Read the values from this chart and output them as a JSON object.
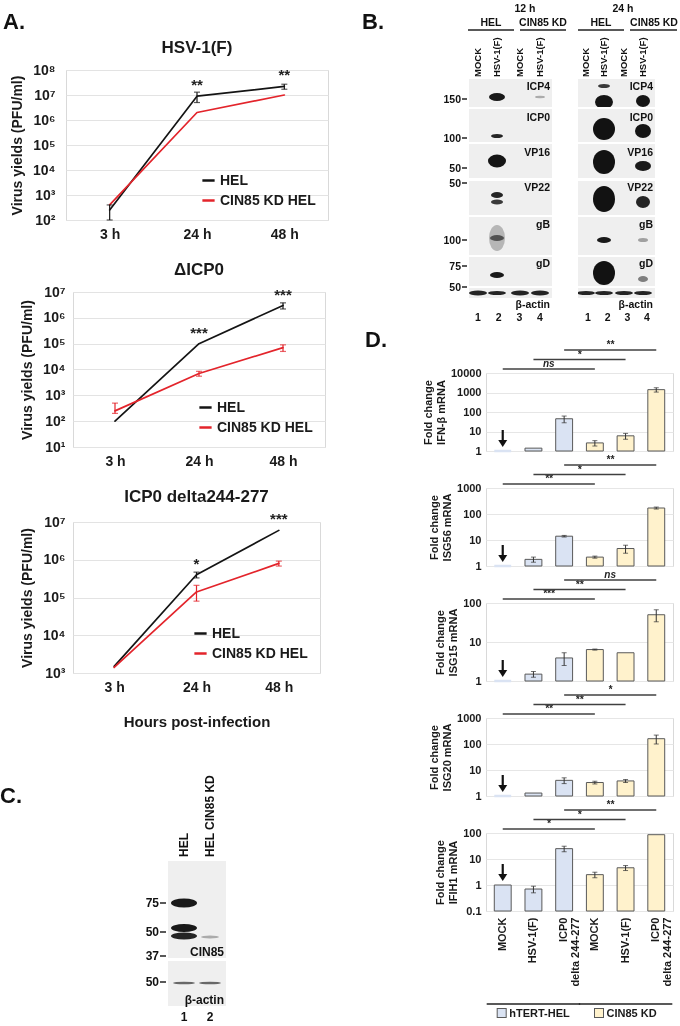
{
  "chart_data": [
    {
      "type": "line",
      "title": "HSV-1(F)",
      "ylabel": "Virus yields (PFU/ml)",
      "categories": [
        "3 h",
        "24 h",
        "48 h"
      ],
      "log": "y",
      "ylim": [
        100,
        100000000
      ],
      "yticks": [
        {
          "value": 100,
          "label": "10²"
        },
        {
          "value": 1000,
          "label": "10³"
        },
        {
          "value": 10000,
          "label": "10⁴"
        },
        {
          "value": 100000,
          "label": "10⁵"
        },
        {
          "value": 1000000,
          "label": "10⁶"
        },
        {
          "value": 10000000,
          "label": "10⁷"
        },
        {
          "value": 100000000,
          "label": "10⁸"
        }
      ],
      "grid": "y",
      "legend": "bottom right",
      "series": [
        {
          "name": "HEL",
          "color": "#141414",
          "values": [
            250,
            9000000,
            22000000
          ],
          "errors": [
            [
              100,
              400
            ],
            4000000,
            5000000
          ]
        },
        {
          "name": "CIN85 KD HEL",
          "color": "#e3242b",
          "values": [
            400,
            2000000,
            10000000
          ]
        }
      ],
      "annotations": [
        "A.",
        {
          "text": "**",
          "x": "24 h",
          "y": 9000000
        },
        {
          "text": "**",
          "x": "48 h",
          "y": 22000000
        }
      ]
    },
    {
      "type": "line",
      "title": "ΔICP0",
      "ylabel": "Virus yields (PFU/ml)",
      "categories": [
        "3 h",
        "24 h",
        "48 h"
      ],
      "log": "y",
      "ylim": [
        10,
        10000000
      ],
      "yticks": [
        {
          "value": 10,
          "label": "10¹"
        },
        {
          "value": 100,
          "label": "10²"
        },
        {
          "value": 1000,
          "label": "10³"
        },
        {
          "value": 10000,
          "label": "10⁴"
        },
        {
          "value": 100000,
          "label": "10⁵"
        },
        {
          "value": 1000000,
          "label": "10⁶"
        },
        {
          "value": 10000000,
          "label": "10⁷"
        }
      ],
      "grid": "y",
      "legend": "bottom right",
      "series": [
        {
          "name": "HEL",
          "color": "#141414",
          "values": [
            100,
            100000,
            3000000
          ],
          "errors": [
            null,
            null,
            800000
          ]
        },
        {
          "name": "CIN85 KD HEL",
          "color": "#e3242b",
          "values": [
            250,
            7000,
            70000
          ],
          "errors": [
            [
              200,
              500
            ],
            1500,
            20000
          ]
        }
      ],
      "annotations": [
        {
          "text": "***",
          "x": "24 h",
          "y": 100000
        },
        {
          "text": "***",
          "x": "48 h",
          "y": 3000000
        }
      ]
    },
    {
      "type": "line",
      "title": "ICP0 delta244-277",
      "xlabel": "Hours post-infection",
      "ylabel": "Virus yields (PFU/ml)",
      "categories": [
        "3 h",
        "24 h",
        "48 h"
      ],
      "log": "y",
      "ylim": [
        1000,
        10000000
      ],
      "yticks": [
        {
          "value": 1000,
          "label": "10³"
        },
        {
          "value": 10000,
          "label": "10⁴"
        },
        {
          "value": 100000,
          "label": "10⁵"
        },
        {
          "value": 1000000,
          "label": "10⁶"
        },
        {
          "value": 10000000,
          "label": "10⁷"
        }
      ],
      "grid": "y",
      "legend": "bottom right",
      "series": [
        {
          "name": "HEL",
          "color": "#141414",
          "values": [
            1500,
            400000,
            6000000
          ],
          "errors": [
            null,
            70000,
            null
          ]
        },
        {
          "name": "CIN85 KD HEL",
          "color": "#e3242b",
          "values": [
            1400,
            140000,
            800000
          ],
          "errors": [
            null,
            [
              80000,
              210000
            ],
            120000
          ]
        }
      ],
      "annotations": [
        {
          "text": "*",
          "x": "24 h",
          "y": 400000
        },
        {
          "text": "***",
          "x": "48 h",
          "y": 6000000
        }
      ]
    },
    {
      "type": "other",
      "categories": [
        "MOCK",
        "HSV-1(F)",
        "MOCK",
        "HSV-1(F)",
        "MOCK",
        "HSV-1(F)",
        "MOCK",
        "HSV-1(F)"
      ],
      "y_categories": [
        "ICP4",
        "ICP0",
        "VP16",
        "VP22",
        "gB",
        "gD",
        "β-actin"
      ],
      "annotations": [
        "B.",
        "12 h",
        "24 h",
        "HEL",
        "CIN85 KD",
        "HEL",
        "CIN85 KD",
        "150",
        "100",
        "50",
        "50",
        "100",
        "75",
        "50",
        "1 2 3 4",
        "1 2 3 4"
      ]
    },
    {
      "type": "other",
      "categories": [
        "HEL",
        "HEL CIN85 KD"
      ],
      "y_categories": [
        "CIN85",
        "β-actin"
      ],
      "annotations": [
        "C.",
        "75",
        "50",
        "37",
        "50",
        "1 2"
      ]
    },
    {
      "type": "bar",
      "ylabel": "Fold change\nIFN-β mRNA",
      "categories": [
        null,
        null,
        null,
        null,
        null,
        null
      ],
      "log": "y",
      "ylim": [
        1,
        10000
      ],
      "yticks": [
        1,
        10,
        100,
        1000,
        10000
      ],
      "grid": "y",
      "series": [
        {
          "color": "#dae3f3",
          "values": [
            1,
            1.4,
            45,
            null,
            null,
            null
          ],
          "errors": [
            null,
            null,
            17,
            null,
            null,
            null
          ]
        },
        {
          "color": "#fff2cc",
          "values": [
            null,
            null,
            null,
            2.6,
            6,
            1400
          ],
          "errors": [
            null,
            null,
            null,
            0.8,
            2,
            350
          ]
        }
      ],
      "annotations": [
        "D.",
        {
          "text": "ns"
        },
        {
          "text": "*"
        },
        {
          "text": "**"
        }
      ]
    },
    {
      "type": "bar",
      "ylabel": "Fold change\nISG56 mRNA",
      "categories": [
        null,
        null,
        null,
        null,
        null,
        null
      ],
      "log": "y",
      "ylim": [
        1,
        1000
      ],
      "yticks": [
        1,
        10,
        100,
        1000
      ],
      "grid": "y",
      "series": [
        {
          "color": "#dae3f3",
          "values": [
            1,
            1.8,
            14,
            null,
            null,
            null
          ],
          "errors": [
            null,
            0.4,
            1,
            null,
            null,
            null
          ]
        },
        {
          "color": "#fff2cc",
          "values": [
            null,
            null,
            null,
            2.2,
            4.7,
            170
          ],
          "errors": [
            null,
            null,
            null,
            0.2,
            1.6,
            15
          ]
        }
      ],
      "annotations": [
        {
          "text": "**"
        },
        {
          "text": "*"
        },
        {
          "text": "**"
        }
      ]
    },
    {
      "type": "bar",
      "ylabel": "Fold change\nISG15 mRNA",
      "categories": [
        null,
        null,
        null,
        null,
        null,
        null
      ],
      "log": "y",
      "ylim": [
        1,
        100
      ],
      "yticks": [
        1,
        10,
        100
      ],
      "grid": "y",
      "series": [
        {
          "color": "#dae3f3",
          "values": [
            1,
            1.5,
            3.9,
            null,
            null,
            null
          ],
          "errors": [
            null,
            0.25,
            1.4,
            null,
            null,
            null
          ]
        },
        {
          "color": "#fff2cc",
          "values": [
            null,
            null,
            null,
            6.4,
            5.3,
            50
          ],
          "errors": [
            null,
            null,
            null,
            0.2,
            null,
            17
          ]
        }
      ],
      "annotations": [
        {
          "text": "***"
        },
        {
          "text": "**"
        },
        {
          "text": "ns"
        }
      ]
    },
    {
      "type": "bar",
      "ylabel": "Fold change\nISG20 mRNA",
      "categories": [
        null,
        null,
        null,
        null,
        null,
        null
      ],
      "log": "y",
      "ylim": [
        1,
        1000
      ],
      "yticks": [
        1,
        10,
        100,
        1000
      ],
      "grid": "y",
      "series": [
        {
          "color": "#dae3f3",
          "values": [
            1,
            1.3,
            4,
            null,
            null,
            null
          ],
          "errors": [
            null,
            null,
            1,
            null,
            null,
            null
          ]
        },
        {
          "color": "#fff2cc",
          "values": [
            null,
            null,
            null,
            3.3,
            3.8,
            160
          ],
          "errors": [
            null,
            null,
            null,
            0.4,
            0.5,
            60
          ]
        }
      ],
      "annotations": [
        {
          "text": "**"
        },
        {
          "text": "**"
        },
        {
          "text": "*"
        }
      ]
    },
    {
      "type": "bar",
      "ylabel": "Fold change\nIFIH1 mRNA",
      "categories": [
        "MOCK",
        "HSV-1(F)",
        "ICP0\ndelta 244-277",
        "MOCK",
        "HSV-1(F)",
        "ICP0\ndelta 244-277"
      ],
      "log": "y",
      "ylim": [
        0.1,
        100
      ],
      "yticks": [
        0.1,
        1,
        10,
        100
      ],
      "grid": "y",
      "legend": "bottom",
      "series": [
        {
          "name": "hTERT-HEL",
          "color": "#dae3f3",
          "values": [
            1,
            0.7,
            25,
            null,
            null,
            null
          ],
          "errors": [
            null,
            0.2,
            6,
            null,
            null,
            null
          ]
        },
        {
          "name": "CIN85 KD",
          "color": "#fff2cc",
          "values": [
            null,
            null,
            null,
            2.5,
            4.6,
            86
          ],
          "errors": [
            null,
            null,
            null,
            0.6,
            1,
            null
          ]
        }
      ],
      "annotations": [
        {
          "text": "*"
        },
        {
          "text": "*"
        },
        {
          "text": "**"
        }
      ]
    }
  ]
}
